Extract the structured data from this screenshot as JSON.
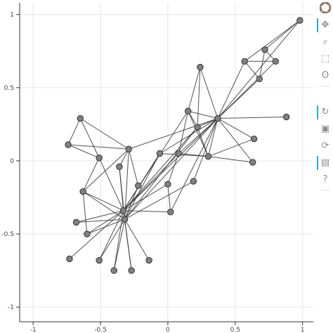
{
  "chart_data": {
    "type": "network-graph",
    "title": "",
    "xlabel": "",
    "ylabel": "",
    "xlim": [
      -1.1,
      1.08
    ],
    "ylim": [
      -1.1,
      1.08
    ],
    "grid": true,
    "x_ticks": [
      {
        "value": -1,
        "label": "-1"
      },
      {
        "value": -0.5,
        "label": "-0.5"
      },
      {
        "value": 0,
        "label": "0"
      },
      {
        "value": 0.5,
        "label": "0.5"
      },
      {
        "value": 1,
        "label": "1"
      }
    ],
    "y_ticks": [
      {
        "value": 1,
        "label": "1"
      },
      {
        "value": 0.5,
        "label": "0.5"
      },
      {
        "value": 0,
        "label": "0"
      },
      {
        "value": -0.5,
        "label": "-0.5"
      },
      {
        "value": -1,
        "label": "-1"
      }
    ],
    "node_color": "#808080",
    "edge_color": "#333333",
    "nodes": [
      {
        "x": 0.37,
        "y": 0.29
      },
      {
        "x": -0.33,
        "y": -0.34
      },
      {
        "x": -0.32,
        "y": -0.4
      },
      {
        "x": 0.98,
        "y": 0.96
      },
      {
        "x": 0.72,
        "y": 0.76
      },
      {
        "x": 0.57,
        "y": 0.68
      },
      {
        "x": 0.8,
        "y": 0.68
      },
      {
        "x": 0.68,
        "y": 0.56
      },
      {
        "x": 0.24,
        "y": 0.64
      },
      {
        "x": 0.88,
        "y": 0.3
      },
      {
        "x": 0.64,
        "y": 0.15
      },
      {
        "x": 0.63,
        "y": -0.01
      },
      {
        "x": 0.15,
        "y": 0.34
      },
      {
        "x": 0.22,
        "y": 0.23
      },
      {
        "x": 0.3,
        "y": 0.03
      },
      {
        "x": 0.08,
        "y": 0.05
      },
      {
        "x": -0.06,
        "y": 0.05
      },
      {
        "x": 0.19,
        "y": -0.14
      },
      {
        "x": 0.0,
        "y": -0.16
      },
      {
        "x": 0.02,
        "y": -0.35
      },
      {
        "x": -0.65,
        "y": 0.29
      },
      {
        "x": -0.74,
        "y": 0.11
      },
      {
        "x": -0.29,
        "y": 0.08
      },
      {
        "x": -0.51,
        "y": 0.02
      },
      {
        "x": -0.36,
        "y": -0.04
      },
      {
        "x": -0.63,
        "y": -0.21
      },
      {
        "x": -0.22,
        "y": -0.17
      },
      {
        "x": -0.68,
        "y": -0.42
      },
      {
        "x": -0.6,
        "y": -0.5
      },
      {
        "x": -0.73,
        "y": -0.67
      },
      {
        "x": -0.51,
        "y": -0.68
      },
      {
        "x": -0.4,
        "y": -0.75
      },
      {
        "x": -0.27,
        "y": -0.75
      },
      {
        "x": -0.14,
        "y": -0.68
      }
    ],
    "edges": [
      [
        3,
        4
      ],
      [
        3,
        5
      ],
      [
        3,
        0
      ],
      [
        4,
        6
      ],
      [
        4,
        7
      ],
      [
        5,
        6
      ],
      [
        5,
        7
      ],
      [
        5,
        0
      ],
      [
        7,
        0
      ],
      [
        6,
        0
      ],
      [
        0,
        8
      ],
      [
        8,
        13
      ],
      [
        0,
        9
      ],
      [
        0,
        10
      ],
      [
        0,
        11
      ],
      [
        0,
        12
      ],
      [
        0,
        13
      ],
      [
        0,
        14
      ],
      [
        0,
        15
      ],
      [
        0,
        16
      ],
      [
        0,
        17
      ],
      [
        0,
        19
      ],
      [
        0,
        22
      ],
      [
        0,
        1
      ],
      [
        0,
        2
      ],
      [
        8,
        12
      ],
      [
        12,
        14
      ],
      [
        12,
        13
      ],
      [
        12,
        15
      ],
      [
        13,
        14
      ],
      [
        15,
        14
      ],
      [
        16,
        14
      ],
      [
        14,
        11
      ],
      [
        14,
        10
      ],
      [
        13,
        1
      ],
      [
        13,
        2
      ],
      [
        12,
        1
      ],
      [
        15,
        18
      ],
      [
        18,
        19
      ],
      [
        19,
        1
      ],
      [
        18,
        1
      ],
      [
        17,
        2
      ],
      [
        16,
        2
      ],
      [
        15,
        1
      ],
      [
        20,
        21
      ],
      [
        20,
        22
      ],
      [
        20,
        23
      ],
      [
        21,
        22
      ],
      [
        21,
        23
      ],
      [
        23,
        25
      ],
      [
        22,
        25
      ],
      [
        22,
        24
      ],
      [
        24,
        1
      ],
      [
        24,
        2
      ],
      [
        25,
        1
      ],
      [
        25,
        28
      ],
      [
        22,
        26
      ],
      [
        26,
        2
      ],
      [
        27,
        1
      ],
      [
        27,
        2
      ],
      [
        28,
        1
      ],
      [
        29,
        1
      ],
      [
        30,
        1
      ],
      [
        31,
        1
      ],
      [
        31,
        2
      ],
      [
        32,
        2
      ],
      [
        32,
        1
      ],
      [
        33,
        2
      ],
      [
        30,
        2
      ],
      [
        28,
        2
      ],
      [
        25,
        2
      ],
      [
        22,
        2
      ],
      [
        16,
        1
      ],
      [
        23,
        1
      ]
    ]
  },
  "toolbar": {
    "items": [
      {
        "name": "bokeh-logo-icon",
        "glyph": "",
        "top": 4,
        "logo": true,
        "active": false,
        "interactable": false
      },
      {
        "name": "pan-tool-icon",
        "glyph": "✥",
        "top": 28,
        "active": true,
        "interactable": true
      },
      {
        "name": "box-zoom-tool-icon",
        "glyph": "⌕",
        "top": 52,
        "active": false,
        "interactable": true
      },
      {
        "name": "box-select-tool-icon",
        "glyph": "⬚",
        "top": 76,
        "active": false,
        "interactable": true
      },
      {
        "name": "lasso-select-tool-icon",
        "glyph": "ʘ",
        "top": 100,
        "active": false,
        "interactable": true
      },
      {
        "name": "wheel-zoom-tool-icon",
        "glyph": "↻",
        "top": 152,
        "active": true,
        "interactable": true
      },
      {
        "name": "save-tool-icon",
        "glyph": "▣",
        "top": 176,
        "active": false,
        "interactable": true
      },
      {
        "name": "reset-tool-icon",
        "glyph": "⟳",
        "top": 200,
        "active": false,
        "interactable": true
      },
      {
        "name": "hover-tool-icon",
        "glyph": "▤",
        "top": 196,
        "active": true,
        "interactable": true
      },
      {
        "name": "help-tool-icon",
        "glyph": "?",
        "top": 224,
        "active": false,
        "interactable": true
      }
    ]
  }
}
